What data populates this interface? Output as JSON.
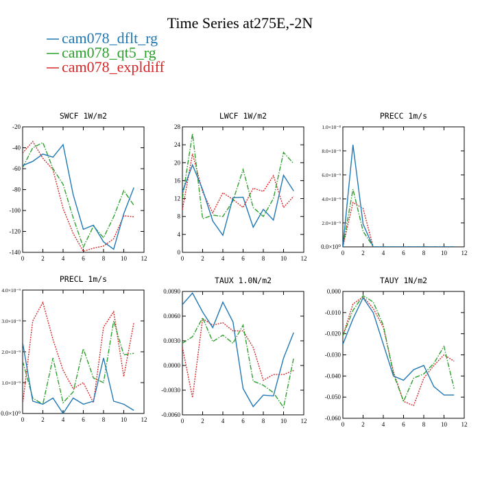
{
  "title": "Time Series at275E,-2N",
  "legend": [
    {
      "label": "cam078_dflt_rg",
      "color": "#1f77b4",
      "dash": "solid"
    },
    {
      "label": "cam078_qt5_rg",
      "color": "#2ca02c",
      "dash": "dashdot"
    },
    {
      "label": "cam078_expldiff",
      "color": "#d62728",
      "dash": "dotted"
    }
  ],
  "chart_data": [
    {
      "type": "line",
      "title": "SWCF   1W/m2",
      "x": [
        0,
        1,
        2,
        3,
        4,
        5,
        6,
        7,
        8,
        9,
        10,
        11
      ],
      "xlim": [
        0,
        12
      ],
      "ylim": [
        -140,
        -20
      ],
      "xticks": [
        0,
        2,
        4,
        6,
        8,
        10,
        12
      ],
      "yticks": [
        -140,
        -120,
        -100,
        -80,
        -60,
        -40,
        -20
      ],
      "ytick_labels": [
        "-140",
        "-120",
        "-100",
        "-80",
        "-60",
        "-40",
        "-20"
      ],
      "series": [
        {
          "name": "cam078_dflt_rg",
          "values": [
            -57,
            -53,
            -46,
            -49,
            -37,
            -85,
            -118,
            -114,
            -130,
            -137,
            -103,
            -78
          ]
        },
        {
          "name": "cam078_qt5_rg",
          "values": [
            -59,
            -40,
            -35,
            -60,
            -75,
            -107,
            -135,
            -115,
            -126,
            -106,
            -81,
            -95
          ]
        },
        {
          "name": "cam078_expldiff",
          "values": [
            -45,
            -34,
            -50,
            -61,
            -98,
            -122,
            -139,
            -136,
            -134,
            -127,
            -105,
            -106
          ]
        }
      ]
    },
    {
      "type": "line",
      "title": "LWCF   1W/m2",
      "x": [
        0,
        1,
        2,
        3,
        4,
        5,
        6,
        7,
        8,
        9,
        10,
        11
      ],
      "xlim": [
        0,
        12
      ],
      "ylim": [
        0,
        28
      ],
      "xticks": [
        0,
        2,
        4,
        6,
        8,
        10,
        12
      ],
      "yticks": [
        0,
        4,
        8,
        12,
        16,
        20,
        24,
        28
      ],
      "ytick_labels": [
        "0",
        "4",
        "8",
        "12",
        "16",
        "20",
        "24",
        "28"
      ],
      "series": [
        {
          "name": "cam078_dflt_rg",
          "values": [
            13.5,
            19.5,
            14,
            7,
            3.8,
            12.2,
            12.3,
            5.6,
            9.6,
            7.2,
            17.2,
            13.7
          ]
        },
        {
          "name": "cam078_qt5_rg",
          "values": [
            12,
            26.5,
            7.5,
            8.3,
            8,
            11.5,
            18.5,
            10,
            8,
            12,
            22.3,
            19.8
          ]
        },
        {
          "name": "cam078_expldiff",
          "values": [
            9.5,
            22,
            13.5,
            8.8,
            13.3,
            11.8,
            10,
            14.3,
            13.6,
            17.1,
            10,
            12.5
          ]
        }
      ]
    },
    {
      "type": "line",
      "title": "PRECC   1m/s",
      "x": [
        0,
        1,
        2,
        3,
        4,
        5,
        6,
        7,
        8,
        9,
        10,
        11
      ],
      "xlim": [
        0,
        12
      ],
      "ylim": [
        0,
        1e-08
      ],
      "xticks": [
        0,
        2,
        4,
        6,
        8,
        10,
        12
      ],
      "yticks": [
        0,
        2e-09,
        4e-09,
        6e-09,
        8e-09,
        1e-08
      ],
      "ytick_labels": [
        "0.0×10⁰",
        "2.0×10⁻⁹",
        "4.0×10⁻⁹",
        "6.0×10⁻⁹",
        "8.0×10⁻⁹",
        "1.0×10⁻⁸"
      ],
      "series": [
        {
          "name": "cam078_dflt_rg",
          "values": [
            0,
            8.5e-09,
            1.9e-09,
            0,
            0,
            0,
            0,
            0,
            0,
            0,
            0,
            0
          ]
        },
        {
          "name": "cam078_qt5_rg",
          "values": [
            0,
            4.8e-09,
            1.3e-09,
            0,
            0,
            0,
            0,
            0,
            0,
            0,
            0,
            0
          ]
        },
        {
          "name": "cam078_expldiff",
          "values": [
            0,
            3.7e-09,
            3.2e-09,
            0,
            0,
            0,
            0,
            0,
            0,
            0,
            0,
            0
          ]
        }
      ]
    },
    {
      "type": "line",
      "title": "PRECL   1m/s",
      "x": [
        0,
        1,
        2,
        3,
        4,
        5,
        6,
        7,
        8,
        9,
        10,
        11
      ],
      "xlim": [
        0,
        12
      ],
      "ylim": [
        0,
        4e-09
      ],
      "xticks": [
        0,
        2,
        4,
        6,
        8,
        10,
        12
      ],
      "yticks": [
        0,
        1e-09,
        2e-09,
        3e-09,
        4e-09
      ],
      "ytick_labels": [
        "0.0×10⁰",
        "1.0×10⁻⁹",
        "2.0×10⁻⁹",
        "3.0×10⁻⁹",
        "4.0×10⁻⁹"
      ],
      "series": [
        {
          "name": "cam078_dflt_rg",
          "values": [
            2.3e-09,
            4e-10,
            3e-10,
            5e-10,
            0.0,
            5e-10,
            3e-10,
            4e-10,
            1.8e-09,
            4e-10,
            3e-10,
            1e-10
          ]
        },
        {
          "name": "cam078_qt5_rg",
          "values": [
            1.7e-09,
            5e-10,
            3e-10,
            1.8e-09,
            3.5e-10,
            7e-10,
            2.1e-09,
            1.15e-09,
            1e-09,
            3e-09,
            1.9e-09,
            1.95e-09
          ]
        },
        {
          "name": "cam078_expldiff",
          "values": [
            3e-10,
            3e-09,
            3.6e-09,
            2.4e-09,
            1.4e-09,
            8e-10,
            1e-09,
            3.5e-10,
            2.8e-09,
            3.3e-09,
            1.2e-09,
            2.95e-09
          ]
        }
      ]
    },
    {
      "type": "line",
      "title": "TAUX   1.0N/m2",
      "x": [
        0,
        1,
        2,
        3,
        4,
        5,
        6,
        7,
        8,
        9,
        10,
        11
      ],
      "xlim": [
        0,
        12
      ],
      "ylim": [
        -0.006,
        0.009
      ],
      "xticks": [
        0,
        2,
        4,
        6,
        8,
        10,
        12
      ],
      "yticks": [
        -0.006,
        -0.003,
        0.0,
        0.003,
        0.006,
        0.009
      ],
      "ytick_labels": [
        "-0.0060",
        "-0.0030",
        "0.0000",
        "0.0030",
        "0.0060",
        "0.0090"
      ],
      "series": [
        {
          "name": "cam078_dflt_rg",
          "values": [
            0.0074,
            0.0088,
            0.0065,
            0.0046,
            0.0077,
            0.0053,
            -0.0028,
            -0.005,
            -0.0036,
            -0.0037,
            0.0009,
            0.004
          ]
        },
        {
          "name": "cam078_qt5_rg",
          "values": [
            0.0027,
            0.0035,
            0.0058,
            0.0029,
            0.0037,
            0.0027,
            0.0049,
            -0.0019,
            -0.0024,
            -0.0033,
            -0.0051,
            0.0009
          ]
        },
        {
          "name": "cam078_expldiff",
          "values": [
            0.0022,
            -0.0039,
            0.0057,
            0.0049,
            0.0052,
            0.0042,
            0.0042,
            0.0022,
            -0.0018,
            -0.0011,
            -0.0011,
            -0.0006
          ]
        }
      ]
    },
    {
      "type": "line",
      "title": "TAUY   1N/m2",
      "x": [
        0,
        1,
        2,
        3,
        4,
        5,
        6,
        7,
        8,
        9,
        10,
        11
      ],
      "xlim": [
        0,
        12
      ],
      "ylim": [
        -0.06,
        0.0
      ],
      "xticks": [
        0,
        2,
        4,
        6,
        8,
        10,
        12
      ],
      "yticks": [
        -0.06,
        -0.05,
        -0.04,
        -0.03,
        -0.02,
        -0.01,
        0.0
      ],
      "ytick_labels": [
        "-0.060",
        "-0.050",
        "-0.040",
        "-0.030",
        "-0.020",
        "-0.010",
        "0.000"
      ],
      "series": [
        {
          "name": "cam078_dflt_rg",
          "values": [
            -0.025,
            -0.013,
            -0.003,
            -0.01,
            -0.025,
            -0.04,
            -0.042,
            -0.037,
            -0.035,
            -0.045,
            -0.049,
            -0.049
          ]
        },
        {
          "name": "cam078_qt5_rg",
          "values": [
            -0.021,
            -0.009,
            -0.002,
            -0.005,
            -0.016,
            -0.039,
            -0.052,
            -0.041,
            -0.039,
            -0.034,
            -0.026,
            -0.046
          ]
        },
        {
          "name": "cam078_expldiff",
          "values": [
            -0.021,
            -0.006,
            -0.0025,
            -0.008,
            -0.017,
            -0.038,
            -0.052,
            -0.054,
            -0.041,
            -0.035,
            -0.03,
            -0.033
          ]
        }
      ]
    }
  ]
}
